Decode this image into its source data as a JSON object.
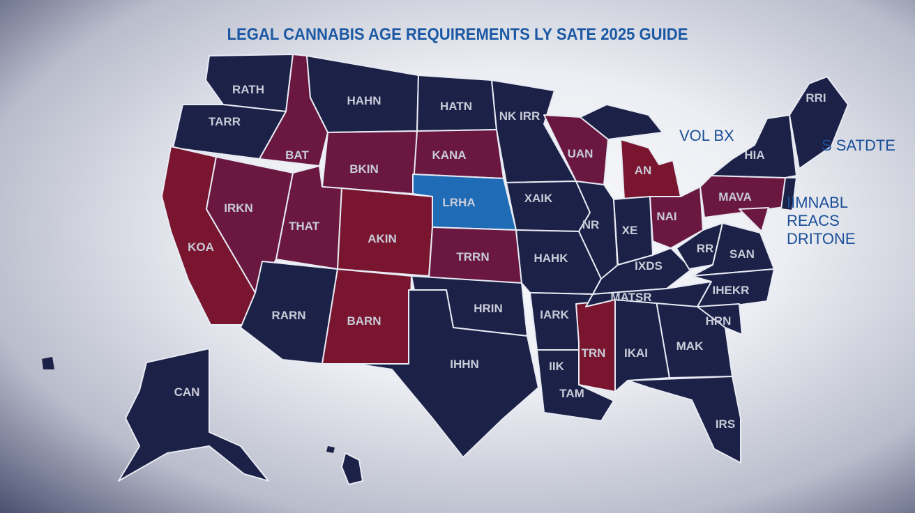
{
  "title": "LEGAL CANNABIS AGE REQUIREMENTS LY SATE 2025 GUIDE",
  "colors": {
    "navy": "#1c2148",
    "maroon": "#6b1840",
    "red": "#7a1530",
    "blue": "#1f6bb6"
  },
  "annotations": {
    "top_right": "VOL BX",
    "right": "S SATDTE",
    "legend": [
      "IIMNABL",
      "REACS",
      "DRITONE"
    ]
  },
  "states": {
    "wa": "RATH",
    "or": "TARR",
    "mt": "HAHN",
    "nd": "HATN",
    "mn": "NK IRR",
    "id": "BAT",
    "wy": "BKIN",
    "sd": "KANA",
    "wi": "UAN",
    "mi": "AN",
    "ny": "HIA",
    "me": "RRI",
    "ne": "LRHA",
    "nv": "IRKN",
    "ut": "THAT",
    "co": "AKIN",
    "ia": "XAIK",
    "il": "NR",
    "in": "XE",
    "oh": "NAI",
    "pa": "MAVA",
    "ca": "KOA",
    "ks": "TRRN",
    "mo": "HAHK",
    "wv": "RR",
    "va": "SAN",
    "ky": "IXDS",
    "tn": "MATSR",
    "nc": "IHEKR",
    "az": "RARN",
    "nm": "BARN",
    "ok": "HRIN",
    "ar": "IARK",
    "sc": "HRN",
    "tx": "IHHN",
    "ms": "TRN",
    "al": "IKAI",
    "ga": "MAK",
    "la": "IIK",
    "la2": "TAM",
    "fl": "IRS",
    "ak": "CAN"
  }
}
